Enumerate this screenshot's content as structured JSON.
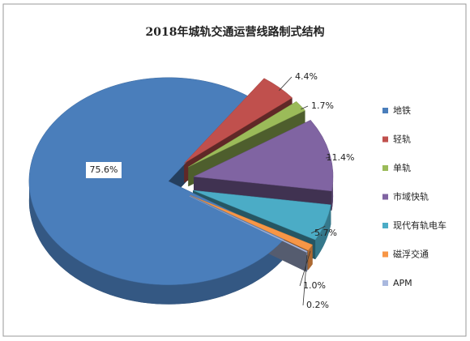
{
  "chart_data": {
    "type": "pie",
    "title": "2018年城轨交通运营线路制式结构",
    "categories": [
      "地铁",
      "轻轨",
      "单轨",
      "市域快轨",
      "现代有轨电车",
      "磁浮交通",
      "APM"
    ],
    "values": [
      75.6,
      4.4,
      1.7,
      11.4,
      5.7,
      1.0,
      0.2
    ],
    "value_labels": [
      "75.6%",
      "4.4%",
      "1.7%",
      "11.4%",
      "5.7%",
      "1.0%",
      "0.2%"
    ],
    "colors": [
      "#4a7ebb",
      "#c0504d",
      "#9bbb59",
      "#8064a2",
      "#4bacc6",
      "#f79646",
      "#a9b8de"
    ],
    "legend": "right"
  }
}
